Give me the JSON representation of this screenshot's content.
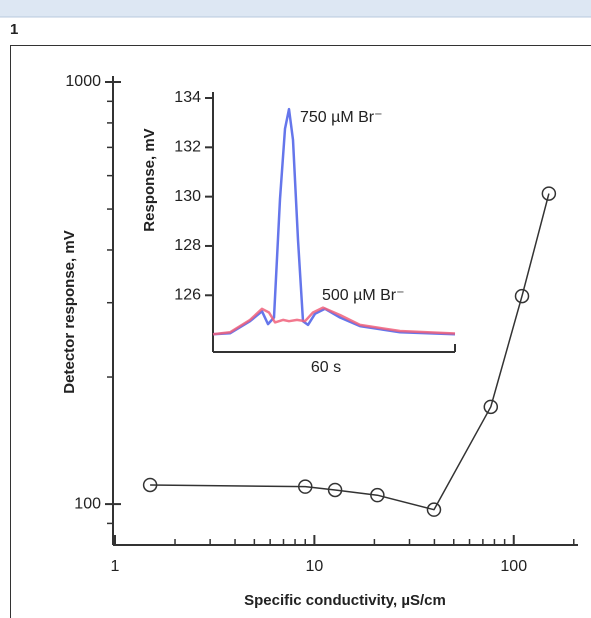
{
  "panel_label": "1",
  "chart_data": [
    {
      "type": "line",
      "xlabel": "Specific conductivity, µS/cm",
      "ylabel": "Detector response, mV",
      "xscale": "log",
      "yscale": "log",
      "color": "#333333",
      "marker": "circle",
      "x": [
        1.5,
        9.0,
        12.7,
        20.7,
        39.8,
        76.7,
        110,
        150
      ],
      "values": [
        111,
        110,
        108,
        105,
        97,
        170,
        311,
        544
      ],
      "xlim": [
        1,
        210
      ],
      "ylim": [
        80,
        1000
      ],
      "xticks": [
        1,
        10,
        100
      ],
      "yticks": [
        100,
        1000
      ],
      "xminorticks": [
        2,
        3,
        4,
        5,
        6,
        7,
        8,
        9,
        20,
        30,
        40,
        50,
        60,
        70,
        80,
        90,
        200
      ],
      "yminorticks": [
        90,
        200,
        300,
        400,
        500,
        600,
        700,
        800,
        900
      ]
    },
    {
      "type": "line",
      "xlabel": "60 s",
      "ylabel": "Response, mV",
      "xlim": [
        0,
        121
      ],
      "ylim": [
        123.7,
        134
      ],
      "yticks": [
        126,
        128,
        130,
        132,
        134
      ],
      "series": [
        {
          "name": "750 µM Br⁻",
          "color": "#4a5ee8",
          "x": [
            0,
            8.5,
            18.5,
            24.5,
            27.5,
            30.5,
            33.5,
            36,
            38,
            40,
            42.5,
            45,
            47.5,
            51,
            56,
            63.5,
            73.5,
            93.5,
            121
          ],
          "values": [
            124.42,
            124.46,
            124.95,
            125.35,
            124.83,
            125.1,
            129.9,
            132.75,
            133.55,
            132.3,
            128.25,
            124.95,
            124.8,
            125.25,
            125.45,
            125.1,
            124.75,
            124.5,
            124.42
          ]
        },
        {
          "name": "500 µM Br⁻",
          "color": "#f0607a",
          "x": [
            0,
            8.5,
            18.5,
            24.5,
            28,
            31,
            35,
            38,
            42,
            46,
            50,
            55,
            63.5,
            73.5,
            93.5,
            121
          ],
          "values": [
            124.42,
            124.5,
            125.0,
            125.45,
            125.3,
            124.9,
            125.0,
            124.95,
            125.0,
            124.95,
            125.3,
            125.5,
            125.2,
            124.8,
            124.55,
            124.45
          ]
        }
      ]
    }
  ]
}
